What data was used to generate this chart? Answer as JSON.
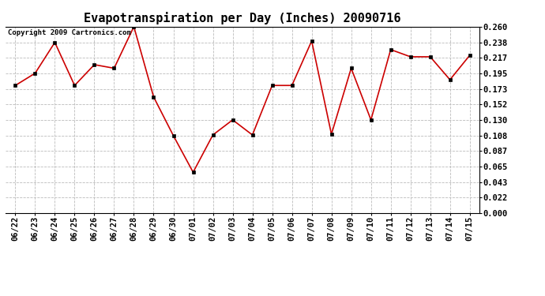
{
  "title": "Evapotranspiration per Day (Inches) 20090716",
  "copyright": "Copyright 2009 Cartronics.com",
  "x_labels": [
    "06/22",
    "06/23",
    "06/24",
    "06/25",
    "06/26",
    "06/27",
    "06/28",
    "06/29",
    "06/30",
    "07/01",
    "07/02",
    "07/03",
    "07/04",
    "07/05",
    "07/06",
    "07/07",
    "07/08",
    "07/09",
    "07/10",
    "07/11",
    "07/12",
    "07/13",
    "07/14",
    "07/15"
  ],
  "y_values": [
    0.178,
    0.195,
    0.238,
    0.178,
    0.207,
    0.202,
    0.26,
    0.162,
    0.108,
    0.057,
    0.109,
    0.13,
    0.109,
    0.178,
    0.178,
    0.24,
    0.11,
    0.202,
    0.13,
    0.228,
    0.218,
    0.218,
    0.186,
    0.22
  ],
  "y_ticks": [
    0.0,
    0.022,
    0.043,
    0.065,
    0.087,
    0.108,
    0.13,
    0.152,
    0.173,
    0.195,
    0.217,
    0.238,
    0.26
  ],
  "line_color": "#cc0000",
  "marker_color": "#000000",
  "background_color": "#ffffff",
  "grid_color": "#bbbbbb",
  "title_fontsize": 11,
  "copyright_fontsize": 6.5,
  "tick_fontsize": 7.5,
  "ylim": [
    0.0,
    0.26
  ]
}
